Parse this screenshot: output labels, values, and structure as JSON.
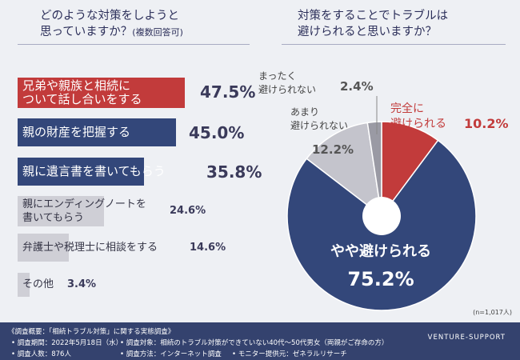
{
  "chart_data": [
    {
      "type": "bar",
      "title_line1": "どのような対策をしようと",
      "title_line2": "思っていますか？",
      "title_note": "(複数回答可)",
      "categories": [
        [
          "兄弟や親族と相続に",
          "ついて話し合いをする"
        ],
        [
          "親の財産を把握する"
        ],
        [
          "親に遺言書を書いてもらう"
        ],
        [
          "親にエンディングノートを",
          "書いてもらう"
        ],
        [
          "弁護士や税理士に相談をする"
        ],
        [
          "その他"
        ]
      ],
      "values": [
        47.5,
        45.0,
        35.8,
        24.6,
        14.6,
        3.4
      ],
      "value_labels": [
        "47.5%",
        "45.0%",
        "35.8%",
        "24.6%",
        "14.6%",
        "3.4%"
      ],
      "xlim": [
        0,
        100
      ],
      "colors": [
        "#c23b3b",
        "#33477a",
        "#33477a",
        "#cfcfd6",
        "#cfcfd6",
        "#cfcfd6"
      ]
    },
    {
      "type": "pie",
      "title_line1": "対策をすることでトラブルは",
      "title_line2": "避けられると思いますか？",
      "labels": [
        [
          "完全に",
          "避けられる"
        ],
        [
          "やや避けられる"
        ],
        [
          "あまり",
          "避けられない"
        ],
        [
          "まったく",
          "避けられない"
        ]
      ],
      "values": [
        10.2,
        75.2,
        12.2,
        2.4
      ],
      "value_labels": [
        "10.2%",
        "75.2%",
        "12.2%",
        "2.4%"
      ],
      "colors": [
        "#c23b3b",
        "#33477a",
        "#c4c4cc",
        "#9a9aa4"
      ],
      "sample_note": "(n=1,017人)"
    }
  ],
  "footer": {
    "summary": "《調査概要：「相続トラブル対策」に関する実態調査》",
    "period": "• 調査期間：2022年5月18日（水）",
    "target": "• 調査対象：相続のトラブル対策ができていない40代〜50代男女（両親がご存命の方）",
    "count": "• 調査人数：876人",
    "method": "• 調査方法：インターネット調査",
    "provider": "• モニター提供元：ゼネラルリサーチ",
    "brand": "VENTURE-SUPPORT"
  }
}
